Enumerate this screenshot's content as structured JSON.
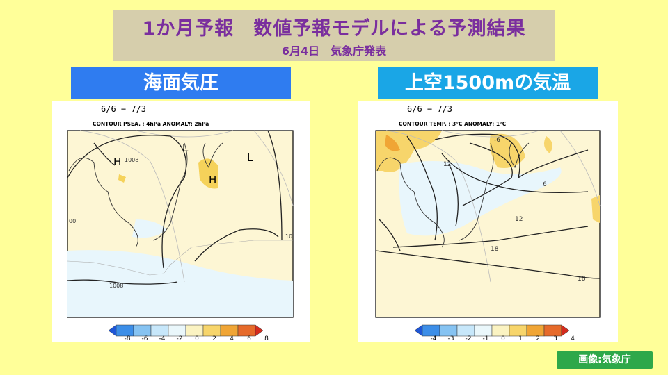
{
  "header": {
    "title": "1か月予報　数値予報モデルによる予測結果",
    "subtitle": "6月4日　気象庁発表"
  },
  "panels": {
    "left": {
      "label": "海面気圧",
      "period": "6/6 − 7/3",
      "contour_info": "CONTOUR PSEA. :  4hPa    ANOMALY:  2hPa",
      "pressure_labels": {
        "high1": "H",
        "high2": "H",
        "low1": "L",
        "low2": "L"
      },
      "contour_values": [
        "1008",
        "00",
        "10",
        "1008"
      ],
      "legend_ticks": [
        "-8",
        "-6",
        "-4",
        "-2",
        "0",
        "2",
        "4",
        "6",
        "8"
      ],
      "legend_colors": [
        "#1f56d6",
        "#3c8ee8",
        "#86c3f2",
        "#c7e7fa",
        "#eaf7fb",
        "#fbf3c2",
        "#f7d56b",
        "#f0a535",
        "#e66a2a",
        "#d42b1e"
      ]
    },
    "right": {
      "label": "上空1500mの気温",
      "period": "6/6 − 7/3",
      "contour_info": "CONTOUR TEMP. :  3°C    ANOMALY:  1°C",
      "contour_values": [
        "-6",
        "12",
        "6",
        "12",
        "18",
        "18"
      ],
      "legend_ticks": [
        "-4",
        "-3",
        "-2",
        "-1",
        "0",
        "1",
        "2",
        "3",
        "4"
      ],
      "legend_colors": [
        "#1f56d6",
        "#3c8ee8",
        "#86c3f2",
        "#c7e7fa",
        "#eaf7fb",
        "#fbf3c2",
        "#f7d56b",
        "#f0a535",
        "#e66a2a",
        "#d42b1e"
      ]
    }
  },
  "credit": "画像:気象庁"
}
